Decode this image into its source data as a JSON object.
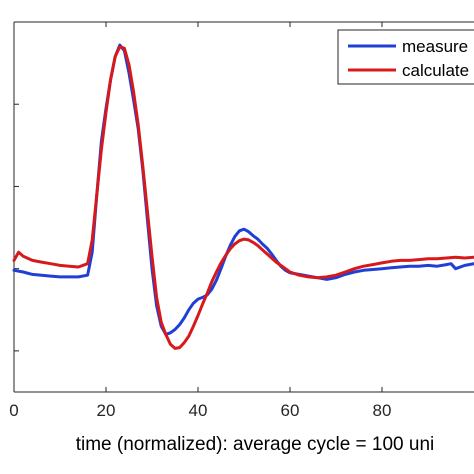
{
  "chart_data": {
    "type": "line",
    "xlabel": "time (normalized): average cycle = 100 uni",
    "ylabel": "",
    "title": "",
    "xlim": [
      0,
      100
    ],
    "ylim": [
      -5,
      40
    ],
    "x_ticks": [
      0,
      20,
      40,
      60,
      80
    ],
    "x_tick_labels": [
      "0",
      "20",
      "40",
      "60",
      "80"
    ],
    "y_ticks": [
      0,
      10,
      20,
      30,
      40
    ],
    "y_tick_labels": [
      "",
      "",
      "",
      "",
      ""
    ],
    "grid": false,
    "legend_position": "top-right",
    "series": [
      {
        "name": "measure",
        "color": "#1f3fd6",
        "x": [
          0,
          2,
          4,
          6,
          8,
          10,
          12,
          14,
          16,
          17,
          18,
          19,
          20,
          21,
          22,
          23,
          24,
          25,
          26,
          27,
          28,
          29,
          30,
          31,
          32,
          33,
          34,
          35,
          36,
          37,
          38,
          39,
          40,
          41,
          42,
          43,
          44,
          45,
          46,
          47,
          48,
          49,
          50,
          51,
          52,
          53,
          54,
          55,
          56,
          57,
          58,
          59,
          60,
          62,
          64,
          66,
          68,
          70,
          72,
          74,
          76,
          78,
          80,
          82,
          84,
          86,
          88,
          90,
          92,
          94,
          95,
          96,
          98,
          100
        ],
        "y": [
          9.8,
          9.6,
          9.3,
          9.2,
          9.1,
          9.0,
          9.0,
          9.0,
          9.2,
          12.0,
          19.0,
          25.5,
          29.5,
          33.0,
          35.8,
          37.2,
          36.5,
          33.8,
          30.5,
          27.0,
          22.0,
          16.0,
          10.0,
          5.5,
          3.0,
          2.0,
          2.2,
          2.6,
          3.2,
          4.0,
          5.0,
          5.8,
          6.3,
          6.5,
          6.8,
          7.5,
          8.6,
          10.0,
          11.5,
          12.8,
          13.9,
          14.6,
          14.8,
          14.5,
          14.0,
          13.6,
          13.0,
          12.5,
          11.8,
          11.0,
          10.3,
          9.8,
          9.5,
          9.3,
          9.1,
          8.9,
          8.7,
          8.9,
          9.3,
          9.6,
          9.8,
          9.9,
          10.0,
          10.1,
          10.2,
          10.3,
          10.3,
          10.4,
          10.3,
          10.5,
          10.6,
          10.0,
          10.4,
          10.6
        ]
      },
      {
        "name": "calculate",
        "color": "#d7191c",
        "x": [
          0,
          1,
          2,
          4,
          6,
          8,
          10,
          12,
          14,
          16,
          17,
          18,
          19,
          20,
          21,
          22,
          23,
          24,
          25,
          26,
          27,
          28,
          29,
          30,
          31,
          32,
          33,
          34,
          35,
          36,
          37,
          38,
          39,
          40,
          41,
          42,
          43,
          44,
          45,
          46,
          47,
          48,
          49,
          50,
          51,
          52,
          53,
          54,
          55,
          56,
          57,
          58,
          59,
          60,
          62,
          64,
          66,
          68,
          70,
          72,
          74,
          76,
          78,
          80,
          82,
          84,
          86,
          88,
          90,
          92,
          94,
          96,
          98,
          100
        ],
        "y": [
          11.0,
          12.0,
          11.5,
          11.0,
          10.8,
          10.6,
          10.4,
          10.3,
          10.2,
          10.6,
          13.5,
          19.0,
          24.5,
          29.0,
          33.0,
          35.8,
          37.0,
          36.8,
          34.8,
          31.5,
          27.5,
          22.5,
          17.0,
          11.5,
          6.5,
          3.5,
          2.0,
          0.8,
          0.3,
          0.4,
          1.0,
          1.8,
          3.0,
          4.3,
          5.7,
          7.0,
          8.4,
          9.6,
          10.7,
          11.6,
          12.4,
          13.0,
          13.4,
          13.6,
          13.5,
          13.2,
          12.8,
          12.3,
          11.8,
          11.3,
          10.8,
          10.4,
          10.0,
          9.6,
          9.2,
          9.0,
          8.9,
          9.0,
          9.2,
          9.6,
          10.0,
          10.3,
          10.5,
          10.7,
          10.9,
          11.0,
          11.0,
          11.1,
          11.2,
          11.2,
          11.3,
          11.4,
          11.3,
          11.4
        ]
      }
    ]
  }
}
